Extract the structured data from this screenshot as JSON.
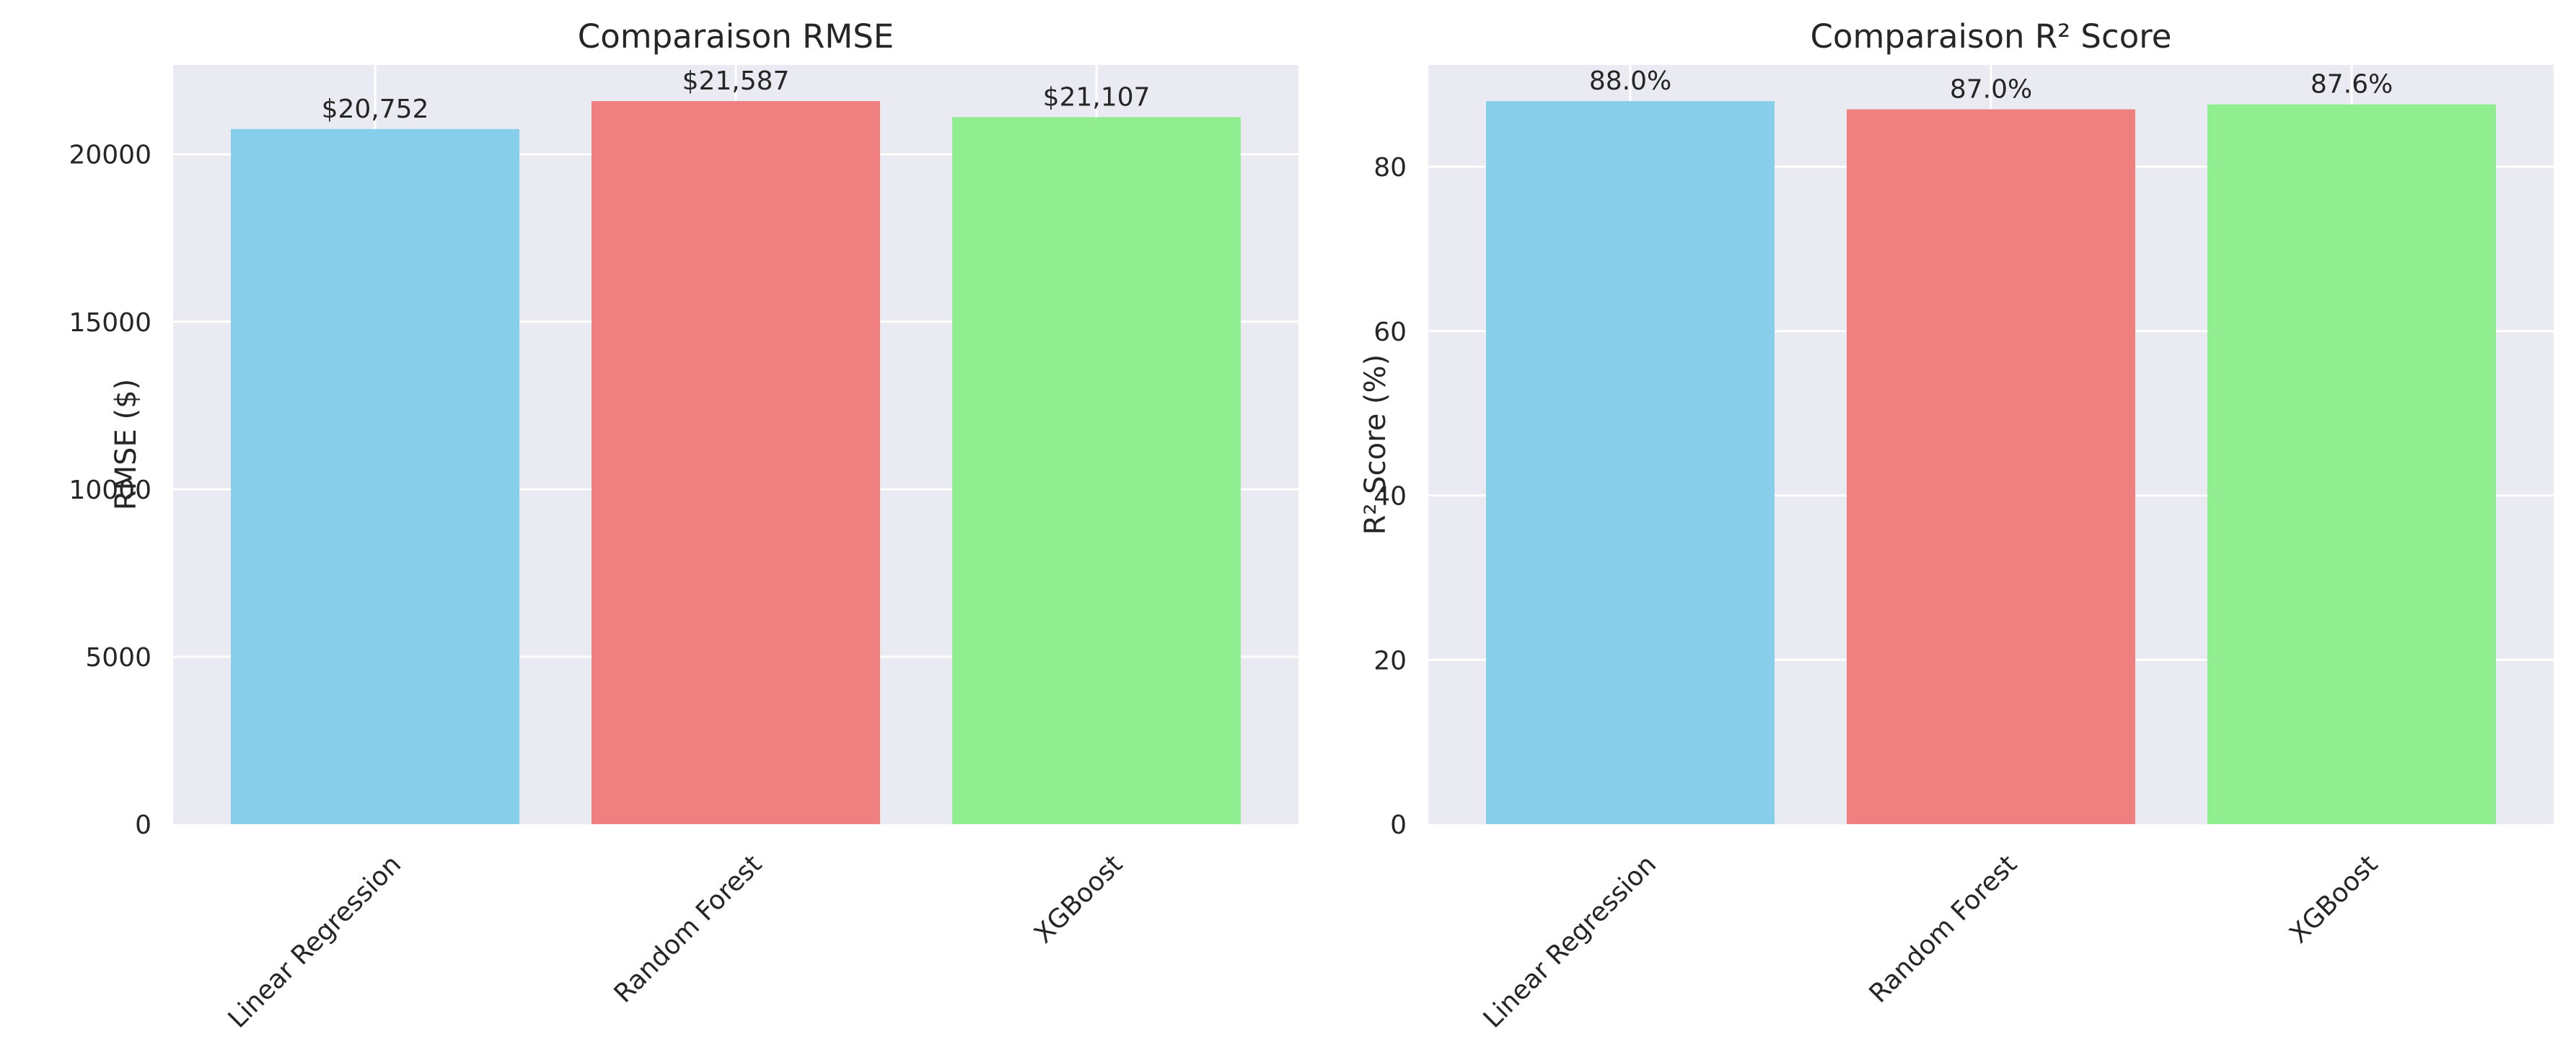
{
  "figure": {
    "background": "#ffffff",
    "axes_facecolor": "#eaeaf2",
    "grid_color": "#ffffff",
    "text_color": "#262626"
  },
  "chart_data": [
    {
      "type": "bar",
      "title": "Comparaison RMSE",
      "xlabel": "",
      "ylabel": "RMSE ($)",
      "categories": [
        "Linear Regression",
        "Random Forest",
        "XGBoost"
      ],
      "values": [
        20752,
        21587,
        21107
      ],
      "value_labels": [
        "$20,752",
        "$21,587",
        "$21,107"
      ],
      "colors": [
        "#87ceeb",
        "#f08080",
        "#90ee90"
      ],
      "ylim": [
        0,
        22666
      ],
      "yticks": [
        0,
        5000,
        10000,
        15000,
        20000
      ],
      "ytick_labels": [
        "0",
        "5000",
        "10000",
        "15000",
        "20000"
      ],
      "xtick_rotation": 45,
      "grid": true
    },
    {
      "type": "bar",
      "title": "Comparaison R² Score",
      "xlabel": "",
      "ylabel": "R² Score (%)",
      "categories": [
        "Linear Regression",
        "Random Forest",
        "XGBoost"
      ],
      "values": [
        88.0,
        87.0,
        87.6
      ],
      "value_labels": [
        "88.0%",
        "87.0%",
        "87.6%"
      ],
      "colors": [
        "#87ceeb",
        "#f08080",
        "#90ee90"
      ],
      "ylim": [
        0,
        92.4
      ],
      "yticks": [
        0,
        20,
        40,
        60,
        80
      ],
      "ytick_labels": [
        "0",
        "20",
        "40",
        "60",
        "80"
      ],
      "xtick_rotation": 45,
      "grid": true
    }
  ]
}
